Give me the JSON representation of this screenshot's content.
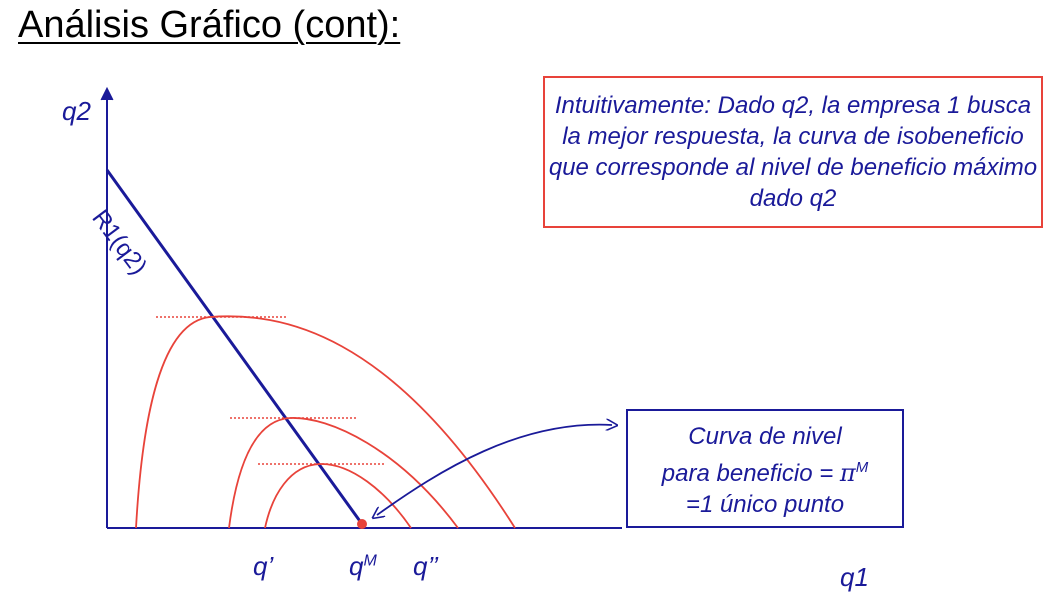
{
  "title": "Análisis Gráfico (cont):",
  "axes": {
    "y_label": "q2",
    "x_label": "q1"
  },
  "curve_label": "R1(q2)",
  "tick_labels": {
    "q_prime": "q’",
    "qm_base": "q",
    "qm_sup": "M",
    "q_double_prime": "q’’"
  },
  "note": "Intuitivamente: Dado q2, la empresa 1 busca la mejor respuesta, la curva de isobeneficio que corresponde al nivel de beneficio máximo dado q2",
  "callout": {
    "line1": "Curva de nivel",
    "line2_text": "para beneficio = ",
    "line2_pi": "π",
    "line2_sup": "M",
    "line3": "=1 único punto"
  },
  "colors": {
    "axis": "#1a1a99",
    "isoprofit": "#e8433a",
    "note_border": "#e8433a",
    "callout_border": "#1a1a99"
  }
}
